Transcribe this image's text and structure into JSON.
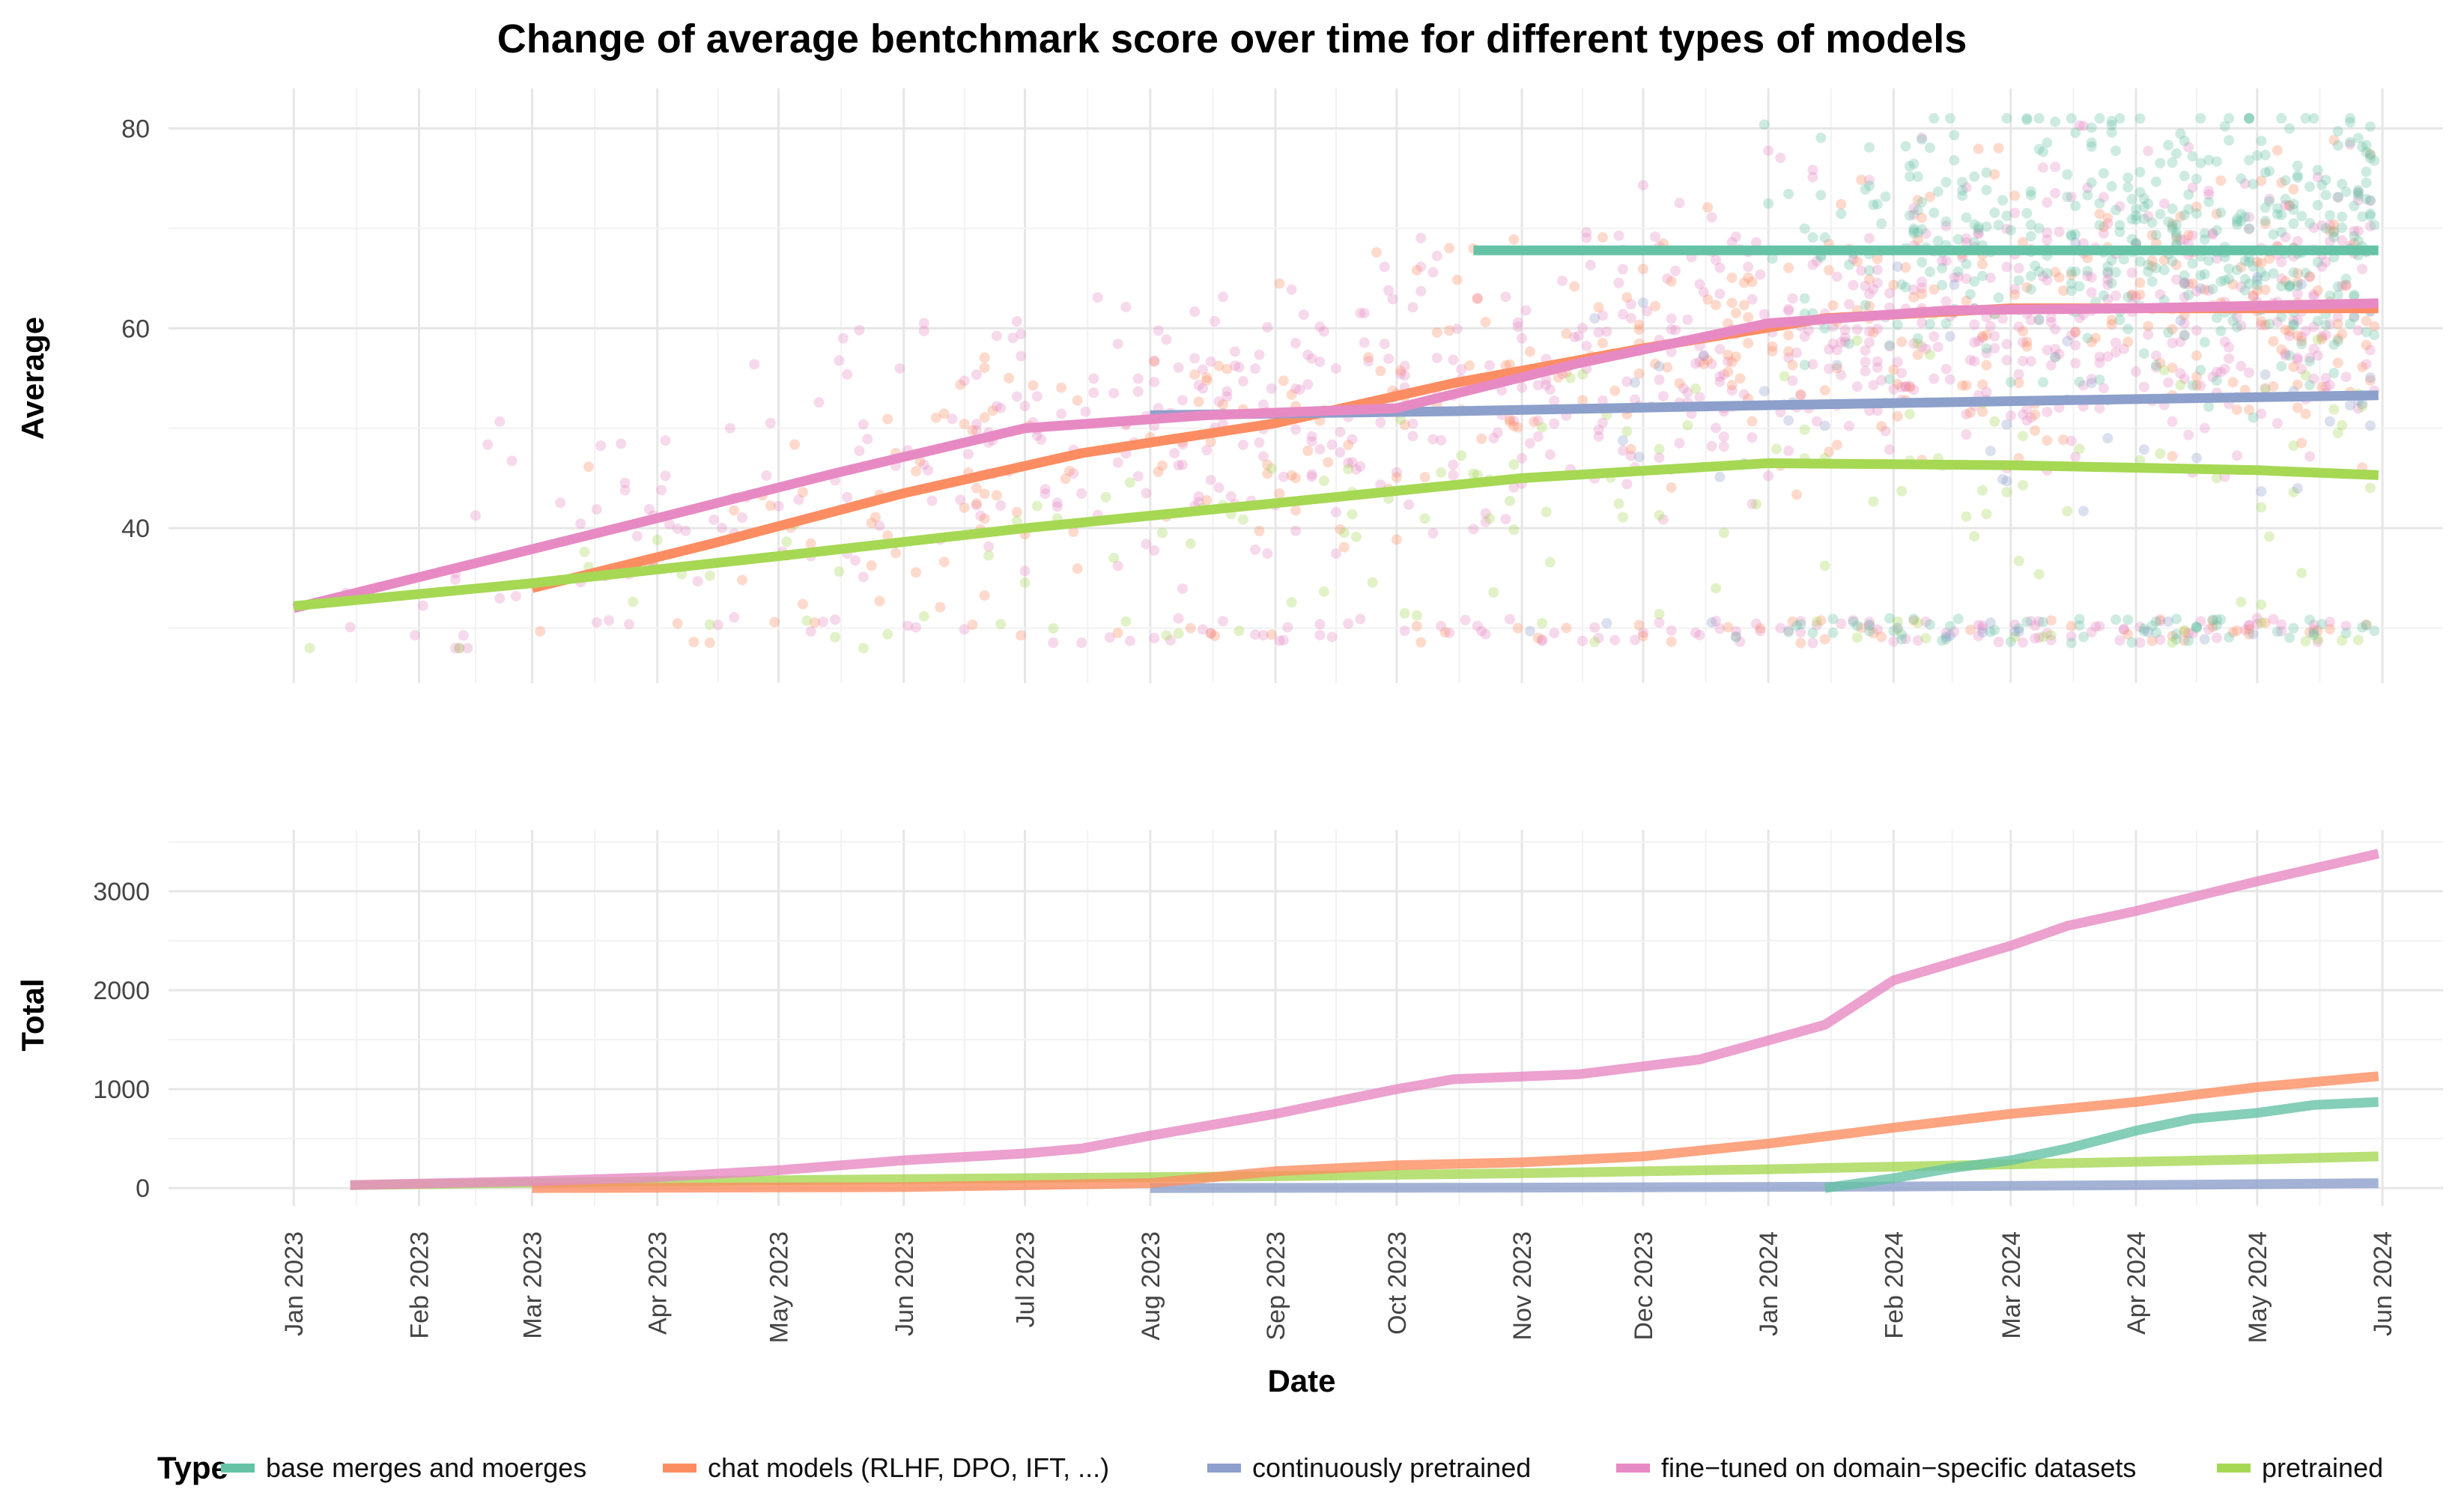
{
  "chart_data": [
    {
      "type": "scatter",
      "panel": "top",
      "title": "Change of average bentchmark score over time for different types of models",
      "ylabel": "Average",
      "xlabel": "",
      "ylim": [
        24.5,
        84
      ],
      "yticks": [
        40,
        60,
        80
      ],
      "xlim": [
        "2022-12-01",
        "2024-06-16"
      ],
      "x_ticks": [
        "2023-01-01",
        "2023-02-01",
        "2023-03-01",
        "2023-04-01",
        "2023-05-01",
        "2023-06-01",
        "2023-07-01",
        "2023-08-01",
        "2023-09-01",
        "2023-10-01",
        "2023-11-01",
        "2023-12-01",
        "2024-01-01",
        "2024-02-01",
        "2024-03-01",
        "2024-04-01",
        "2024-05-01",
        "2024-06-01"
      ],
      "grid": true,
      "series": [
        {
          "name": "base merges and moerges",
          "color": "#66c2a5",
          "trend": {
            "x": [
              "2023-10-20",
              "2024-05-31"
            ],
            "y": [
              67.8,
              67.8
            ]
          }
        },
        {
          "name": "chat models (RLHF, DPO, IFT, ...)",
          "color": "#fc8d62",
          "trend": {
            "x": [
              "2023-03-01",
              "2023-04-15",
              "2023-06-01",
              "2023-07-15",
              "2023-09-01",
              "2023-10-15",
              "2023-12-01",
              "2024-01-15",
              "2024-03-01",
              "2024-04-15",
              "2024-05-31"
            ],
            "y": [
              34.0,
              38.5,
              43.5,
              47.5,
              50.5,
              54.5,
              58.0,
              61.0,
              62.0,
              62.0,
              62.0
            ]
          }
        },
        {
          "name": "continuously pretrained",
          "color": "#8da0cb",
          "trend": {
            "x": [
              "2023-08-01",
              "2023-10-15",
              "2024-01-01",
              "2024-03-15",
              "2024-05-31"
            ],
            "y": [
              51.3,
              51.7,
              52.3,
              52.8,
              53.3
            ]
          }
        },
        {
          "name": "fine-tuned on domain-specific datasets",
          "color": "#e78ac3",
          "trend": {
            "x": [
              "2023-01-01",
              "2023-02-15",
              "2023-04-01",
              "2023-05-15",
              "2023-07-01",
              "2023-08-15",
              "2023-10-01",
              "2023-11-15",
              "2024-01-01",
              "2024-02-15",
              "2024-04-01",
              "2024-05-31"
            ],
            "y": [
              32.0,
              36.5,
              41.0,
              45.5,
              50.0,
              51.3,
              52.0,
              56.5,
              60.5,
              61.8,
              62.0,
              62.5
            ]
          }
        },
        {
          "name": "pretrained",
          "color": "#a6d854",
          "trend": {
            "x": [
              "2023-01-01",
              "2023-03-01",
              "2023-05-01",
              "2023-07-01",
              "2023-09-01",
              "2023-11-01",
              "2024-01-01",
              "2024-03-01",
              "2024-05-01",
              "2024-05-31"
            ],
            "y": [
              32.2,
              34.5,
              37.2,
              40.0,
              42.5,
              45.0,
              46.5,
              46.3,
              45.8,
              45.3
            ]
          }
        }
      ]
    },
    {
      "type": "line",
      "panel": "bottom",
      "ylabel": "Total",
      "xlabel": "Date",
      "ylim": [
        -180,
        3620
      ],
      "yticks": [
        0,
        1000,
        2000,
        3000
      ],
      "xlim": [
        "2022-12-01",
        "2024-06-16"
      ],
      "x_ticks": [
        "2023-01-01",
        "2023-02-01",
        "2023-03-01",
        "2023-04-01",
        "2023-05-01",
        "2023-06-01",
        "2023-07-01",
        "2023-08-01",
        "2023-09-01",
        "2023-10-01",
        "2023-11-01",
        "2023-12-01",
        "2024-01-01",
        "2024-02-01",
        "2024-03-01",
        "2024-04-01",
        "2024-05-01",
        "2024-06-01"
      ],
      "x_tick_labels": [
        "Jan 2023",
        "Feb 2023",
        "Mar 2023",
        "Apr 2023",
        "May 2023",
        "Jun 2023",
        "Jul 2023",
        "Aug 2023",
        "Sep 2023",
        "Oct 2023",
        "Nov 2023",
        "Dec 2023",
        "Jan 2024",
        "Feb 2024",
        "Mar 2024",
        "Apr 2024",
        "May 2024",
        "Jun 2024"
      ],
      "grid": true,
      "series": [
        {
          "name": "base merges and moerges",
          "color": "#66c2a5",
          "x": [
            "2024-01-15",
            "2024-02-01",
            "2024-02-15",
            "2024-03-01",
            "2024-03-15",
            "2024-04-01",
            "2024-04-15",
            "2024-05-01",
            "2024-05-15",
            "2024-05-31"
          ],
          "y": [
            0,
            100,
            200,
            280,
            400,
            580,
            700,
            760,
            840,
            870
          ]
        },
        {
          "name": "chat models (RLHF, DPO, IFT, ...)",
          "color": "#fc8d62",
          "x": [
            "2023-03-01",
            "2023-06-01",
            "2023-08-01",
            "2023-09-01",
            "2023-10-01",
            "2023-11-01",
            "2023-12-01",
            "2024-01-01",
            "2024-02-01",
            "2024-03-01",
            "2024-04-01",
            "2024-05-01",
            "2024-05-31"
          ],
          "y": [
            0,
            10,
            50,
            170,
            230,
            260,
            320,
            450,
            610,
            750,
            870,
            1020,
            1130
          ]
        },
        {
          "name": "continuously pretrained",
          "color": "#8da0cb",
          "x": [
            "2023-08-01",
            "2023-11-01",
            "2024-02-01",
            "2024-04-01",
            "2024-05-31"
          ],
          "y": [
            0,
            5,
            15,
            30,
            50
          ]
        },
        {
          "name": "fine-tuned on domain-specific datasets",
          "color": "#e78ac3",
          "x": [
            "2023-01-15",
            "2023-03-01",
            "2023-04-01",
            "2023-05-01",
            "2023-06-01",
            "2023-07-01",
            "2023-07-15",
            "2023-08-01",
            "2023-09-01",
            "2023-10-01",
            "2023-10-15",
            "2023-11-15",
            "2023-12-15",
            "2024-01-15",
            "2024-02-01",
            "2024-03-01",
            "2024-03-15",
            "2024-04-01",
            "2024-05-01",
            "2024-05-31"
          ],
          "y": [
            30,
            70,
            110,
            180,
            280,
            350,
            400,
            530,
            750,
            1000,
            1100,
            1150,
            1300,
            1650,
            2100,
            2450,
            2650,
            2800,
            3100,
            3380
          ]
        },
        {
          "name": "pretrained",
          "color": "#a6d854",
          "x": [
            "2023-01-15",
            "2023-03-01",
            "2023-05-01",
            "2023-07-01",
            "2023-09-01",
            "2023-11-01",
            "2024-01-01",
            "2024-03-01",
            "2024-05-01",
            "2024-05-31"
          ],
          "y": [
            30,
            55,
            80,
            100,
            120,
            150,
            190,
            240,
            290,
            320
          ]
        }
      ]
    }
  ],
  "legend": {
    "title": "Type",
    "items": [
      {
        "label": "base merges and moerges",
        "color": "#66c2a5"
      },
      {
        "label": "chat models (RLHF, DPO, IFT, ...)",
        "color": "#fc8d62"
      },
      {
        "label": "continuously pretrained",
        "color": "#8da0cb"
      },
      {
        "label": "fine−tuned on domain−specific datasets",
        "color": "#e78ac3"
      },
      {
        "label": "pretrained",
        "color": "#a6d854"
      }
    ]
  }
}
